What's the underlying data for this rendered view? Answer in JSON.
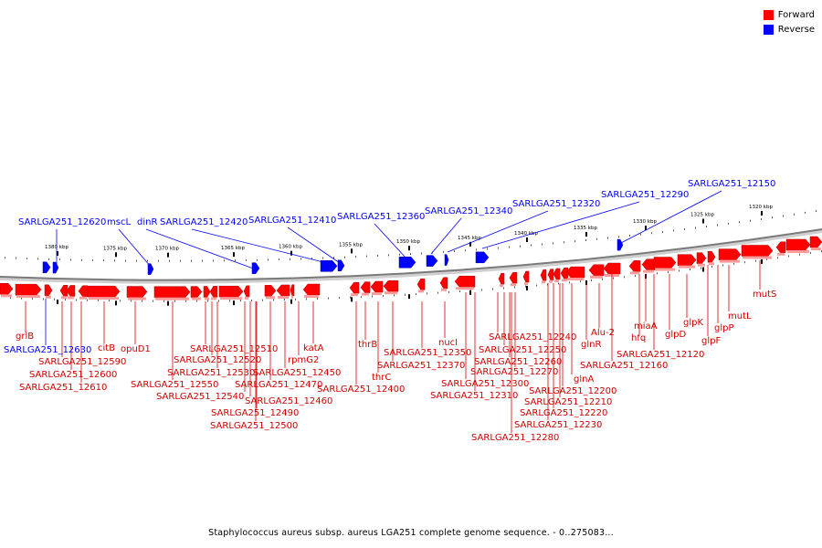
{
  "legend": {
    "forward_label": "Forward",
    "reverse_label": "Reverse",
    "forward_color": "#ff0000",
    "reverse_color": "#0000ff"
  },
  "caption": "Staphylococcus aureus subsp. aureus LGA251 complete genome sequence. - 0..275083...",
  "ticks": [
    "1380 kbp",
    "1375 kbp",
    "1370 kbp",
    "1365 kbp",
    "1360 kbp",
    "1355 kbp",
    "1350 kbp",
    "1345 kbp",
    "1340 kbp",
    "1335 kbp",
    "1330 kbp",
    "1325 kbp",
    "1320 kbp"
  ],
  "reverse_labels": [
    "SARLGA251_12620",
    "mscL",
    "dinR",
    "SARLGA251_12420",
    "SARLGA251_12410",
    "SARLGA251_12360",
    "SARLGA251_12340",
    "SARLGA251_12320",
    "SARLGA251_12290",
    "SARLGA251_12150",
    "SARLGA251_12630"
  ],
  "forward_labels": [
    "grlB",
    "SARLGA251_12590",
    "SARLGA251_12600",
    "SARLGA251_12610",
    "citB",
    "opuD1",
    "SARLGA251_12510",
    "SARLGA251_12520",
    "SARLGA251_12530",
    "SARLGA251_12550",
    "SARLGA251_12540",
    "SARLGA251_12470",
    "SARLGA251_12450",
    "SARLGA251_12460",
    "SARLGA251_12490",
    "SARLGA251_12500",
    "rpmG2",
    "katA",
    "thrB",
    "thrC",
    "SARLGA251_12400",
    "SARLGA251_12370",
    "SARLGA251_12350",
    "nucI",
    "SARLGA251_12240",
    "SARLGA251_12250",
    "SARLGA251_12260",
    "SARLGA251_12270",
    "SARLGA251_12300",
    "SARLGA251_12310",
    "SARLGA251_12280",
    "glnR",
    "Alu-2",
    "glnA",
    "SARLGA251_12200",
    "SARLGA251_12210",
    "SARLGA251_12220",
    "SARLGA251_12230",
    "hfq",
    "miaA",
    "glpD",
    "SARLGA251_12120",
    "SARLGA251_12160",
    "glpK",
    "glpF",
    "glpP",
    "mutL",
    "mutS"
  ]
}
